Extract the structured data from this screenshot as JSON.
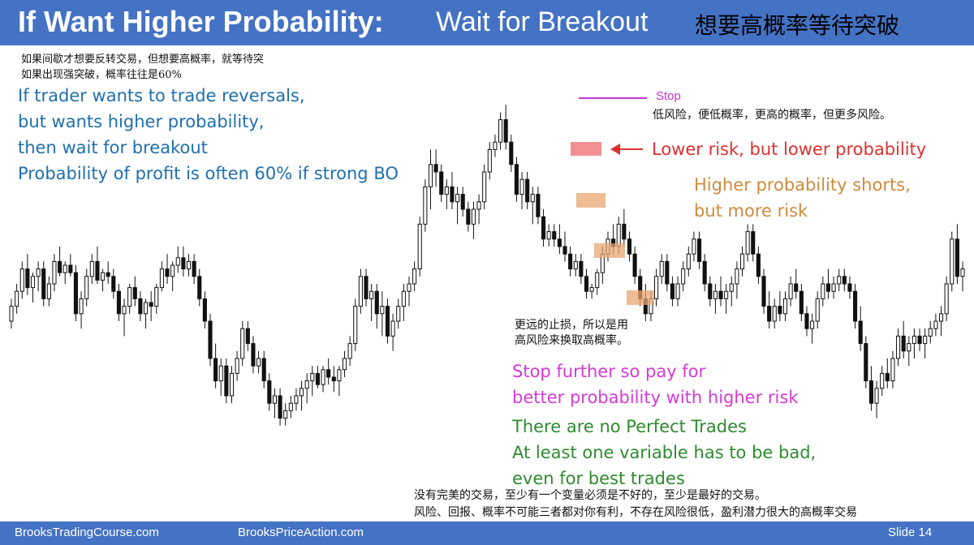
{
  "header": {
    "title_bold": "If Want Higher Probability:",
    "title_light": "Wait for Breakout",
    "title_cn": "想要高概率等待突破"
  },
  "top_left": {
    "cn_lines": [
      "如果间歇才想要反转交易，但想要高概率，就等待突",
      "如果出现强突破，概率往往是60%"
    ],
    "en_lines": [
      "If trader wants to trade reversals,",
      "but wants higher probability,",
      "then wait for breakout",
      "Probability of profit is often 60% if strong BO"
    ],
    "en_color": "#1f6fae"
  },
  "annotations": {
    "stop_label": "Stop",
    "stop_cn": "低风险，便低概率，更高的概率，但更多风险。",
    "lower_risk": "Lower risk, but lower probability",
    "higher_prob_lines": [
      "Higher probability shorts,",
      "but more risk"
    ],
    "further_stop_cn": [
      "更远的止损，所以是用",
      "高风险来换取高概率。"
    ],
    "stop_further_lines": [
      "Stop further so pay for",
      "better probability with higher risk"
    ],
    "no_perfect_lines": [
      "There are no Perfect Trades",
      "At least one variable has to be bad,",
      "even for best trades"
    ],
    "bottom_cn": [
      "没有完美的交易，至少有一个变量必须是不好的，至少是最好的交易。",
      "风险、回报、概率不可能三者都对你有利，不存在风险很低，盈利潜力很大的高概率交易"
    ],
    "colors": {
      "red": "#e03030",
      "orange": "#d08a3c",
      "magenta": "#d63ad6",
      "green": "#2e8b2e",
      "stop_line": "#cc33cc",
      "highlight_red": "#ec6b6b",
      "highlight_orange": "#e8a572"
    }
  },
  "footer": {
    "left": "BrooksTradingCourse.com",
    "mid": "BrooksPriceAction.com",
    "slide": "Slide  14"
  },
  "chart_data": {
    "type": "candlestick",
    "title": "",
    "xlabel": "",
    "ylabel": "",
    "ylim": [
      0,
      100
    ],
    "grid": false,
    "bull_color": "#ffffff",
    "bear_color": "#111111",
    "candles": [
      [
        40,
        46,
        38,
        44
      ],
      [
        44,
        50,
        42,
        48
      ],
      [
        48,
        56,
        46,
        54
      ],
      [
        54,
        58,
        47,
        49
      ],
      [
        49,
        53,
        45,
        52
      ],
      [
        52,
        56,
        48,
        54
      ],
      [
        54,
        56,
        44,
        46
      ],
      [
        46,
        52,
        44,
        50
      ],
      [
        50,
        58,
        48,
        56
      ],
      [
        56,
        60,
        52,
        53
      ],
      [
        53,
        56,
        50,
        55
      ],
      [
        55,
        58,
        52,
        53
      ],
      [
        53,
        55,
        40,
        42
      ],
      [
        42,
        48,
        38,
        46
      ],
      [
        46,
        54,
        44,
        52
      ],
      [
        52,
        58,
        50,
        56
      ],
      [
        56,
        60,
        50,
        51
      ],
      [
        51,
        54,
        48,
        53
      ],
      [
        53,
        56,
        50,
        52
      ],
      [
        52,
        54,
        46,
        48
      ],
      [
        48,
        50,
        40,
        42
      ],
      [
        42,
        46,
        36,
        44
      ],
      [
        44,
        50,
        42,
        49
      ],
      [
        49,
        52,
        44,
        46
      ],
      [
        46,
        48,
        40,
        42
      ],
      [
        42,
        46,
        38,
        45
      ],
      [
        45,
        48,
        40,
        44
      ],
      [
        44,
        50,
        42,
        49
      ],
      [
        49,
        56,
        48,
        54
      ],
      [
        54,
        58,
        50,
        52
      ],
      [
        52,
        56,
        48,
        55
      ],
      [
        55,
        60,
        53,
        57
      ],
      [
        57,
        60,
        52,
        54
      ],
      [
        54,
        58,
        52,
        56
      ],
      [
        56,
        58,
        50,
        52
      ],
      [
        52,
        54,
        44,
        46
      ],
      [
        46,
        48,
        38,
        40
      ],
      [
        40,
        42,
        28,
        30
      ],
      [
        30,
        34,
        22,
        24
      ],
      [
        24,
        30,
        20,
        28
      ],
      [
        28,
        30,
        18,
        20
      ],
      [
        20,
        28,
        18,
        26
      ],
      [
        26,
        32,
        24,
        30
      ],
      [
        30,
        40,
        28,
        38
      ],
      [
        38,
        40,
        32,
        34
      ],
      [
        34,
        36,
        26,
        28
      ],
      [
        28,
        32,
        26,
        30
      ],
      [
        30,
        32,
        22,
        24
      ],
      [
        24,
        26,
        16,
        18
      ],
      [
        18,
        22,
        14,
        20
      ],
      [
        20,
        22,
        12,
        14
      ],
      [
        14,
        18,
        12,
        16
      ],
      [
        16,
        20,
        14,
        18
      ],
      [
        18,
        22,
        16,
        20
      ],
      [
        20,
        24,
        16,
        22
      ],
      [
        22,
        26,
        18,
        24
      ],
      [
        24,
        28,
        20,
        26
      ],
      [
        26,
        28,
        22,
        23
      ],
      [
        23,
        28,
        21,
        27
      ],
      [
        27,
        30,
        23,
        25
      ],
      [
        25,
        28,
        21,
        24
      ],
      [
        24,
        28,
        20,
        27
      ],
      [
        27,
        32,
        25,
        30
      ],
      [
        30,
        36,
        28,
        34
      ],
      [
        34,
        46,
        32,
        44
      ],
      [
        44,
        54,
        42,
        52
      ],
      [
        52,
        54,
        44,
        46
      ],
      [
        46,
        50,
        40,
        48
      ],
      [
        48,
        50,
        38,
        42
      ],
      [
        42,
        48,
        36,
        44
      ],
      [
        44,
        46,
        34,
        36
      ],
      [
        36,
        42,
        32,
        40
      ],
      [
        40,
        46,
        38,
        44
      ],
      [
        44,
        50,
        40,
        48
      ],
      [
        48,
        52,
        44,
        50
      ],
      [
        50,
        56,
        48,
        54
      ],
      [
        54,
        68,
        52,
        66
      ],
      [
        66,
        78,
        64,
        76
      ],
      [
        76,
        86,
        70,
        82
      ],
      [
        82,
        86,
        76,
        80
      ],
      [
        80,
        82,
        72,
        74
      ],
      [
        74,
        78,
        70,
        76
      ],
      [
        76,
        80,
        70,
        72
      ],
      [
        72,
        76,
        66,
        74
      ],
      [
        74,
        76,
        68,
        70
      ],
      [
        70,
        72,
        64,
        66
      ],
      [
        66,
        72,
        62,
        70
      ],
      [
        70,
        74,
        66,
        72
      ],
      [
        72,
        82,
        70,
        80
      ],
      [
        80,
        88,
        78,
        86
      ],
      [
        86,
        90,
        84,
        88
      ],
      [
        88,
        96,
        86,
        94
      ],
      [
        94,
        98,
        86,
        88
      ],
      [
        88,
        90,
        80,
        82
      ],
      [
        82,
        84,
        72,
        74
      ],
      [
        74,
        80,
        70,
        78
      ],
      [
        78,
        80,
        70,
        72
      ],
      [
        72,
        76,
        66,
        74
      ],
      [
        74,
        76,
        66,
        68
      ],
      [
        68,
        70,
        60,
        62
      ],
      [
        62,
        66,
        60,
        64
      ],
      [
        64,
        66,
        60,
        62
      ],
      [
        62,
        66,
        58,
        60
      ],
      [
        60,
        64,
        56,
        58
      ],
      [
        58,
        60,
        52,
        54
      ],
      [
        54,
        58,
        52,
        56
      ],
      [
        56,
        58,
        50,
        52
      ],
      [
        52,
        54,
        46,
        48
      ],
      [
        48,
        50,
        46,
        49
      ],
      [
        49,
        54,
        47,
        53
      ],
      [
        53,
        60,
        50,
        58
      ],
      [
        58,
        64,
        56,
        62
      ],
      [
        62,
        66,
        58,
        60
      ],
      [
        60,
        68,
        58,
        66
      ],
      [
        66,
        70,
        60,
        62
      ],
      [
        62,
        64,
        56,
        58
      ],
      [
        58,
        60,
        50,
        52
      ],
      [
        52,
        54,
        44,
        46
      ],
      [
        46,
        50,
        40,
        42
      ],
      [
        42,
        48,
        40,
        46
      ],
      [
        46,
        54,
        44,
        52
      ],
      [
        52,
        58,
        50,
        56
      ],
      [
        56,
        58,
        48,
        50
      ],
      [
        50,
        52,
        44,
        46
      ],
      [
        46,
        52,
        44,
        50
      ],
      [
        50,
        56,
        48,
        54
      ],
      [
        54,
        60,
        52,
        58
      ],
      [
        58,
        64,
        56,
        62
      ],
      [
        62,
        64,
        54,
        56
      ],
      [
        56,
        58,
        48,
        50
      ],
      [
        50,
        52,
        44,
        46
      ],
      [
        46,
        50,
        42,
        48
      ],
      [
        48,
        52,
        44,
        46
      ],
      [
        46,
        50,
        42,
        48
      ],
      [
        48,
        52,
        44,
        50
      ],
      [
        50,
        56,
        46,
        54
      ],
      [
        54,
        60,
        52,
        58
      ],
      [
        58,
        66,
        56,
        64
      ],
      [
        64,
        66,
        56,
        58
      ],
      [
        58,
        60,
        50,
        52
      ],
      [
        52,
        54,
        42,
        44
      ],
      [
        44,
        48,
        38,
        40
      ],
      [
        40,
        46,
        38,
        44
      ],
      [
        44,
        48,
        40,
        42
      ],
      [
        42,
        48,
        40,
        46
      ],
      [
        46,
        52,
        44,
        50
      ],
      [
        50,
        54,
        46,
        48
      ],
      [
        48,
        50,
        40,
        42
      ],
      [
        42,
        44,
        36,
        38
      ],
      [
        38,
        42,
        34,
        40
      ],
      [
        40,
        48,
        38,
        46
      ],
      [
        46,
        52,
        44,
        50
      ],
      [
        50,
        54,
        46,
        48
      ],
      [
        48,
        52,
        46,
        50
      ],
      [
        50,
        54,
        48,
        52
      ],
      [
        52,
        54,
        48,
        50
      ],
      [
        50,
        52,
        46,
        48
      ],
      [
        48,
        50,
        38,
        40
      ],
      [
        40,
        44,
        32,
        34
      ],
      [
        34,
        36,
        22,
        24
      ],
      [
        24,
        28,
        16,
        18
      ],
      [
        18,
        24,
        14,
        22
      ],
      [
        22,
        28,
        20,
        26
      ],
      [
        26,
        30,
        22,
        24
      ],
      [
        24,
        32,
        22,
        30
      ],
      [
        30,
        38,
        28,
        36
      ],
      [
        36,
        40,
        30,
        32
      ],
      [
        32,
        36,
        28,
        34
      ],
      [
        34,
        38,
        30,
        36
      ],
      [
        36,
        38,
        32,
        34
      ],
      [
        34,
        38,
        30,
        36
      ],
      [
        36,
        40,
        34,
        38
      ],
      [
        38,
        42,
        36,
        40
      ],
      [
        40,
        44,
        36,
        42
      ],
      [
        42,
        52,
        40,
        50
      ],
      [
        50,
        64,
        48,
        62
      ],
      [
        62,
        66,
        50,
        52
      ],
      [
        52,
        56,
        48,
        54
      ]
    ]
  }
}
